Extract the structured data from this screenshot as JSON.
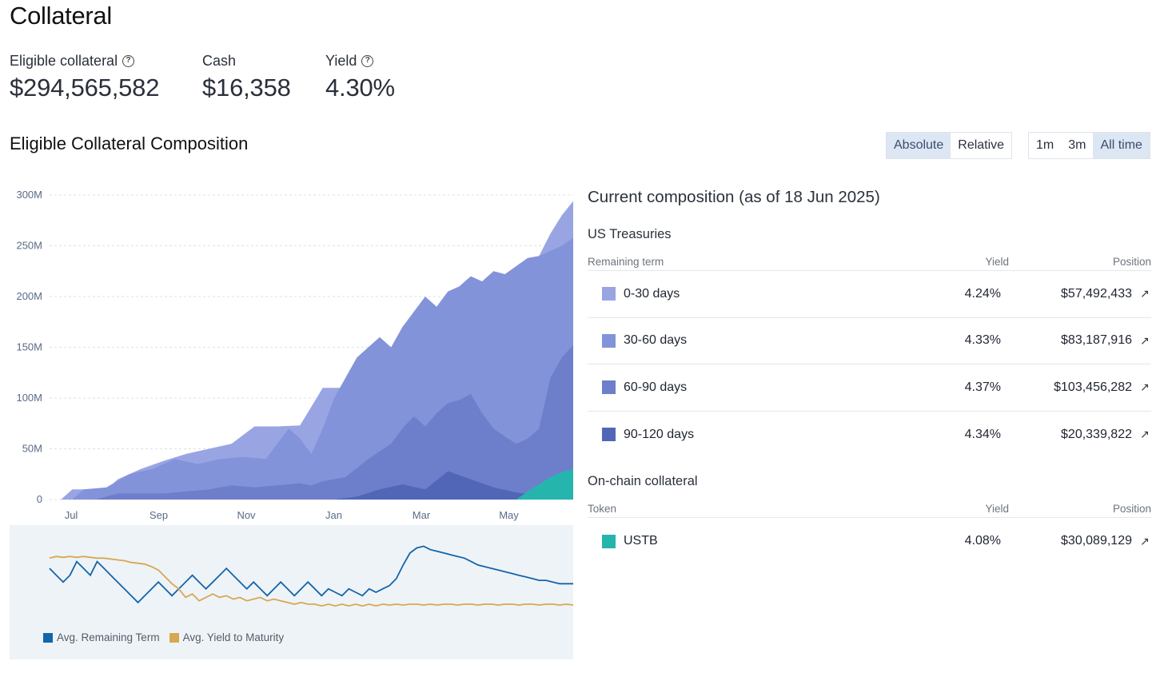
{
  "header": {
    "title": "Collateral",
    "stats": [
      {
        "label": "Eligible collateral",
        "value": "$294,565,582",
        "has_help": true
      },
      {
        "label": "Cash",
        "value": "$16,358",
        "has_help": false
      },
      {
        "label": "Yield",
        "value": "4.30%",
        "has_help": true
      }
    ]
  },
  "section": {
    "title": "Eligible Collateral Composition",
    "mode_toggle": [
      {
        "label": "Absolute",
        "active": true
      },
      {
        "label": "Relative",
        "active": false
      }
    ],
    "range_toggle": [
      {
        "label": "1m",
        "active": false
      },
      {
        "label": "3m",
        "active": false
      },
      {
        "label": "All time",
        "active": true
      }
    ]
  },
  "chart_data": [
    {
      "type": "area",
      "stacked": true,
      "y_ticks": [
        "300M",
        "250M",
        "200M",
        "150M",
        "100M",
        "50M",
        "0"
      ],
      "ylim": [
        0,
        300
      ],
      "y_unit": "M",
      "x_ticks": [
        "Jul",
        "Sep",
        "Nov",
        "Jan",
        "Mar",
        "May"
      ],
      "colors": {
        "USTB": "#26b5ad",
        "90-120 days": "#5266b8",
        "60-90 days": "#6d7fca",
        "30-60 days": "#8393da",
        "0-30 days": "#99a5e3"
      },
      "series": [
        {
          "name": "USTB",
          "points": [
            [
              0,
              0
            ],
            [
              82,
              0
            ],
            [
              84,
              8
            ],
            [
              86,
              15
            ],
            [
              88,
              22
            ],
            [
              90,
              27
            ],
            [
              92,
              30
            ]
          ]
        },
        {
          "name": "90-120 days",
          "points": [
            [
              0,
              0
            ],
            [
              50,
              0
            ],
            [
              54,
              3
            ],
            [
              58,
              10
            ],
            [
              62,
              15
            ],
            [
              66,
              10
            ],
            [
              70,
              28
            ],
            [
              74,
              20
            ],
            [
              78,
              12
            ],
            [
              82,
              7
            ],
            [
              86,
              4
            ],
            [
              88,
              3
            ],
            [
              92,
              3
            ]
          ]
        },
        {
          "name": "60-90 days",
          "points": [
            [
              0,
              0
            ],
            [
              8,
              0
            ],
            [
              12,
              6
            ],
            [
              20,
              6
            ],
            [
              24,
              8
            ],
            [
              28,
              10
            ],
            [
              32,
              14
            ],
            [
              36,
              12
            ],
            [
              40,
              14
            ],
            [
              44,
              16
            ],
            [
              46,
              14
            ],
            [
              48,
              18
            ],
            [
              52,
              22
            ],
            [
              56,
              40
            ],
            [
              60,
              55
            ],
            [
              62,
              70
            ],
            [
              64,
              82
            ],
            [
              66,
              72
            ],
            [
              68,
              85
            ],
            [
              70,
              95
            ],
            [
              72,
              98
            ],
            [
              74,
              104
            ],
            [
              76,
              85
            ],
            [
              78,
              70
            ],
            [
              80,
              62
            ],
            [
              82,
              55
            ],
            [
              84,
              60
            ],
            [
              86,
              70
            ],
            [
              88,
              120
            ],
            [
              90,
              140
            ],
            [
              92,
              152
            ]
          ]
        },
        {
          "name": "30-60 days",
          "points": [
            [
              0,
              0
            ],
            [
              4,
              0
            ],
            [
              6,
              10
            ],
            [
              10,
              12
            ],
            [
              14,
              25
            ],
            [
              18,
              30
            ],
            [
              22,
              40
            ],
            [
              26,
              35
            ],
            [
              30,
              40
            ],
            [
              34,
              42
            ],
            [
              38,
              40
            ],
            [
              40,
              55
            ],
            [
              42,
              70
            ],
            [
              44,
              60
            ],
            [
              46,
              45
            ],
            [
              48,
              70
            ],
            [
              50,
              100
            ],
            [
              52,
              120
            ],
            [
              54,
              140
            ],
            [
              56,
              150
            ],
            [
              58,
              160
            ],
            [
              60,
              150
            ],
            [
              62,
              170
            ],
            [
              64,
              185
            ],
            [
              66,
              200
            ],
            [
              68,
              190
            ],
            [
              70,
              205
            ],
            [
              72,
              210
            ],
            [
              74,
              220
            ],
            [
              76,
              215
            ],
            [
              78,
              225
            ],
            [
              80,
              222
            ],
            [
              82,
              230
            ],
            [
              84,
              238
            ],
            [
              86,
              240
            ],
            [
              88,
              245
            ],
            [
              90,
              250
            ],
            [
              92,
              258
            ]
          ]
        },
        {
          "name": "0-30 days",
          "points": [
            [
              0,
              0
            ],
            [
              2,
              0
            ],
            [
              4,
              10
            ],
            [
              10,
              10
            ],
            [
              12,
              20
            ],
            [
              16,
              30
            ],
            [
              20,
              38
            ],
            [
              24,
              45
            ],
            [
              28,
              50
            ],
            [
              32,
              55
            ],
            [
              36,
              72
            ],
            [
              40,
              72
            ],
            [
              44,
              73
            ],
            [
              48,
              110
            ],
            [
              52,
              110
            ],
            [
              56,
              112
            ],
            [
              60,
              112
            ],
            [
              64,
              115
            ],
            [
              66,
              160
            ],
            [
              70,
              175
            ],
            [
              74,
              178
            ],
            [
              76,
              190
            ],
            [
              80,
              205
            ],
            [
              84,
              225
            ],
            [
              86,
              240
            ],
            [
              88,
              262
            ],
            [
              90,
              280
            ],
            [
              92,
              294
            ]
          ]
        }
      ]
    },
    {
      "type": "line",
      "series": [
        {
          "name": "Avg. Remaining Term",
          "color": "#1465a8",
          "values": [
            58,
            50,
            42,
            50,
            66,
            58,
            50,
            66,
            58,
            50,
            42,
            34,
            26,
            18,
            26,
            34,
            42,
            34,
            26,
            34,
            42,
            50,
            42,
            34,
            42,
            50,
            58,
            50,
            42,
            34,
            42,
            34,
            26,
            34,
            42,
            34,
            26,
            34,
            42,
            34,
            26,
            34,
            30,
            26,
            34,
            30,
            26,
            34,
            30,
            34,
            38,
            46,
            62,
            76,
            82,
            84,
            80,
            78,
            76,
            74,
            72,
            70,
            66,
            62,
            60,
            58,
            56,
            54,
            52,
            50,
            48,
            46,
            44,
            44,
            42,
            40,
            40,
            40
          ]
        },
        {
          "name": "Avg. Yield to Maturity",
          "color": "#d6a94f",
          "values": [
            70,
            72,
            71,
            72,
            71,
            72,
            71,
            70,
            70,
            69,
            68,
            67,
            65,
            64,
            63,
            60,
            56,
            48,
            40,
            34,
            24,
            28,
            20,
            24,
            28,
            24,
            26,
            22,
            24,
            20,
            22,
            24,
            20,
            22,
            20,
            18,
            16,
            18,
            16,
            16,
            14,
            16,
            14,
            16,
            14,
            16,
            14,
            16,
            14,
            16,
            15,
            16,
            15,
            16,
            16,
            15,
            16,
            15,
            16,
            16,
            15,
            16,
            16,
            15,
            16,
            16,
            15,
            16,
            16,
            15,
            16,
            16,
            15,
            16,
            16,
            15,
            16,
            15
          ]
        }
      ]
    }
  ],
  "legend": [
    {
      "label": "Avg. Remaining Term",
      "color": "#1465a8"
    },
    {
      "label": "Avg. Yield to Maturity",
      "color": "#d6a94f"
    }
  ],
  "composition": {
    "title": "Current composition (as of 18 Jun 2025)",
    "treasuries": {
      "title": "US Treasuries",
      "headers": {
        "term": "Remaining term",
        "yield": "Yield",
        "position": "Position"
      },
      "rows": [
        {
          "label": "0-30 days",
          "yield": "4.24%",
          "position": "$57,492,433",
          "color": "#99a5e3"
        },
        {
          "label": "30-60 days",
          "yield": "4.33%",
          "position": "$83,187,916",
          "color": "#8393da"
        },
        {
          "label": "60-90 days",
          "yield": "4.37%",
          "position": "$103,456,282",
          "color": "#6d7fca"
        },
        {
          "label": "90-120 days",
          "yield": "4.34%",
          "position": "$20,339,822",
          "color": "#5266b8"
        }
      ]
    },
    "onchain": {
      "title": "On-chain collateral",
      "headers": {
        "term": "Token",
        "yield": "Yield",
        "position": "Position"
      },
      "rows": [
        {
          "label": "USTB",
          "yield": "4.08%",
          "position": "$30,089,129",
          "color": "#26b5ad"
        }
      ]
    },
    "link_icon": "↗"
  }
}
